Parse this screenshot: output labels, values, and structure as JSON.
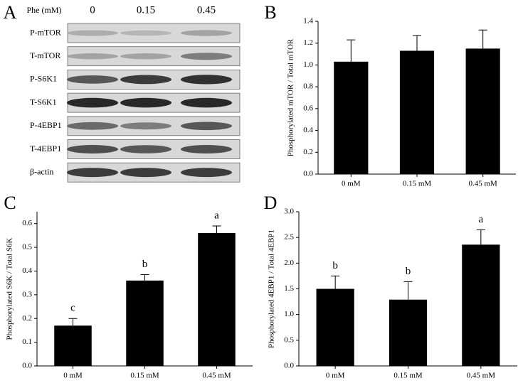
{
  "blot": {
    "panel_label": "A",
    "header": "Phe (mM)",
    "lanes": [
      "0",
      "0.15",
      "0.45"
    ],
    "rows": [
      "P-mTOR",
      "T-mTOR",
      "P-S6K1",
      "T-S6K1",
      "P-4EBP1",
      "T-4EBP1",
      "β-actin"
    ]
  },
  "chart_data": [
    {
      "type": "bar",
      "panel_label": "B",
      "y_label": "Phosphorylated mTOR / Total mTOR",
      "categories": [
        "0 mM",
        "0.15 mM",
        "0.45 mM"
      ],
      "values": [
        1.03,
        1.13,
        1.15
      ],
      "errors": [
        0.2,
        0.14,
        0.17
      ],
      "color": "#000000",
      "ylim": [
        0,
        1.4
      ],
      "yticks": [
        {
          "value": 0,
          "label": "0.0"
        },
        0.2,
        0.4,
        0.6,
        0.8,
        {
          "value": 1,
          "label": "1.0"
        },
        1.2,
        1.4
      ]
    },
    {
      "type": "bar",
      "panel_label": "C",
      "y_label": "Phosphorylated S6K / Total S6K",
      "categories": [
        "0 mM",
        "0.15 mM",
        "0.45 mM"
      ],
      "values": [
        0.17,
        0.36,
        0.56
      ],
      "errors": [
        0.03,
        0.025,
        0.03
      ],
      "annotations": [
        "c",
        "b",
        "a"
      ],
      "color": "#000000",
      "ylim": [
        0,
        0.65
      ],
      "yticks": [
        {
          "value": 0,
          "label": "0.0"
        },
        0.1,
        0.2,
        0.3,
        0.4,
        0.5,
        0.6
      ]
    },
    {
      "type": "bar",
      "panel_label": "D",
      "y_label": "Phosphorylated 4EBP1 / Total 4EBP1",
      "categories": [
        "0 mM",
        "0.15 mM",
        "0.45 mM"
      ],
      "values": [
        1.5,
        1.29,
        2.36
      ],
      "errors": [
        0.25,
        0.35,
        0.29
      ],
      "annotations": [
        "b",
        "b",
        "a"
      ],
      "color": "#000000",
      "ylim": [
        0,
        3
      ],
      "yticks": [
        {
          "value": 0,
          "label": "0.0"
        },
        0.5,
        {
          "value": 1,
          "label": "1.0"
        },
        1.5,
        {
          "value": 2,
          "label": "2.0"
        },
        2.5,
        {
          "value": 3,
          "label": "3.0"
        }
      ]
    }
  ]
}
